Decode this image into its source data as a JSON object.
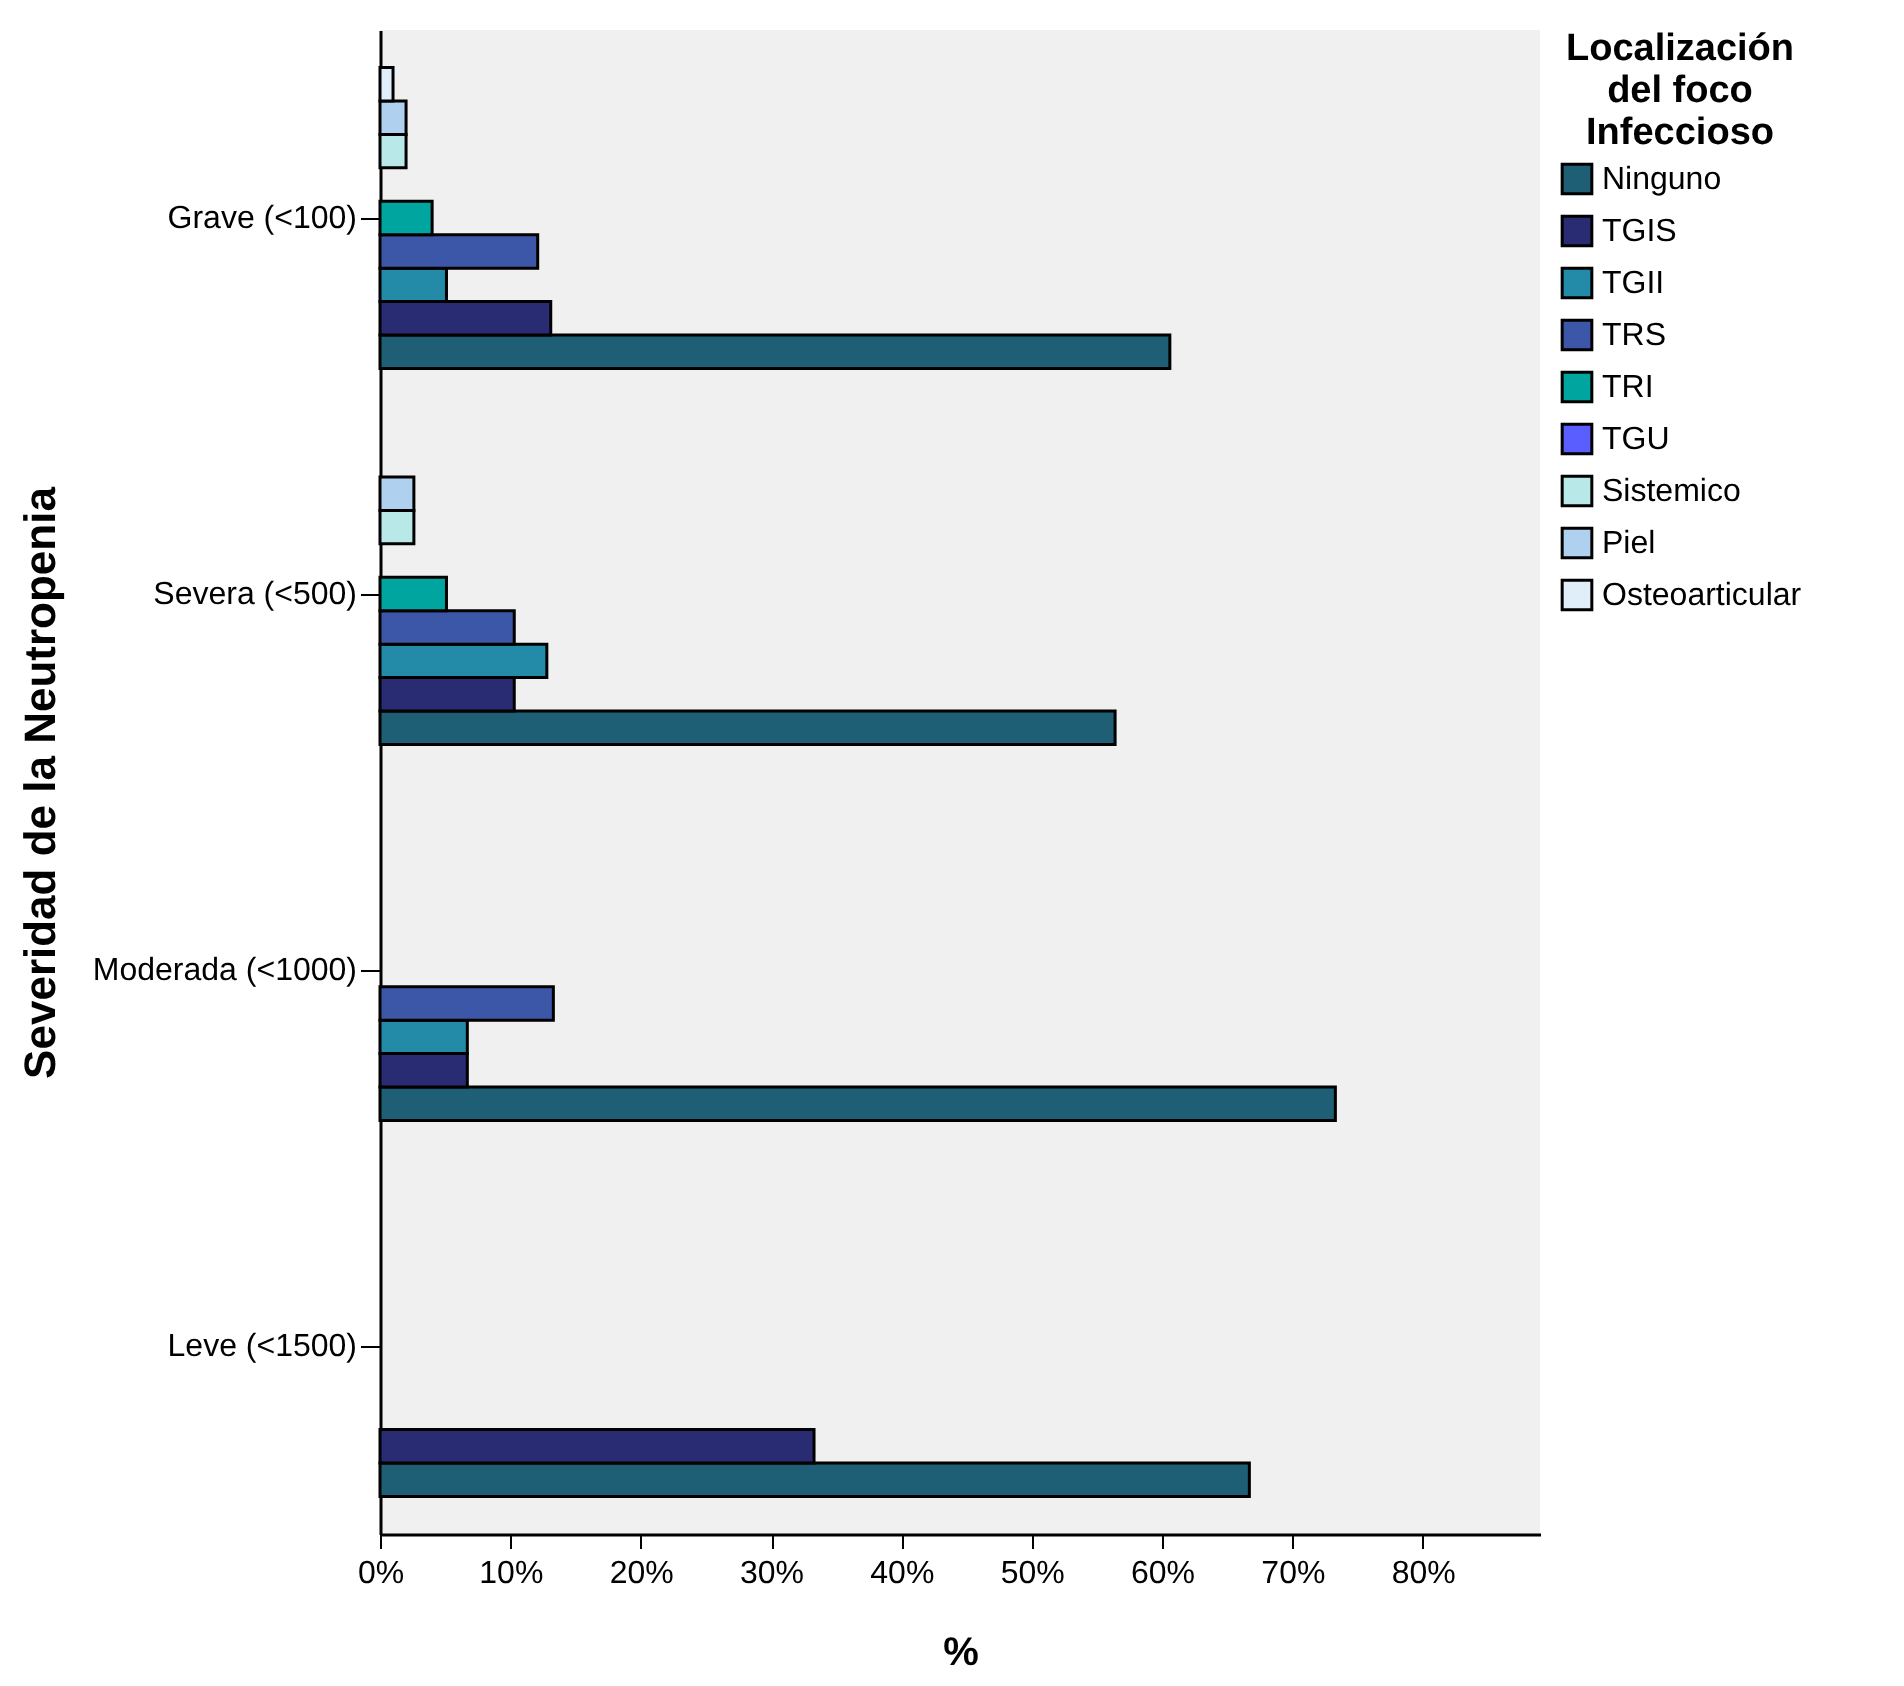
{
  "chart_data": {
    "type": "bar",
    "orientation": "horizontal",
    "xlabel": "%",
    "ylabel": "Severidad de la Neutropenia",
    "legend_title": "Localización del foco Infeccioso",
    "legend": "right",
    "categories": [
      "Grave (<100)",
      "Severa (<500)",
      "Moderada (<1000)",
      "Leve (<1500)"
    ],
    "xlim": [
      0,
      89
    ],
    "xticks": [
      {
        "value": 0,
        "label": "0%"
      },
      {
        "value": 10,
        "label": "10%"
      },
      {
        "value": 20,
        "label": "20%"
      },
      {
        "value": 30,
        "label": "30%"
      },
      {
        "value": 40,
        "label": "40%"
      },
      {
        "value": 50,
        "label": "50%"
      },
      {
        "value": 60,
        "label": "60%"
      },
      {
        "value": 70,
        "label": "70%"
      },
      {
        "value": 80,
        "label": "80%"
      }
    ],
    "grid": false,
    "series": [
      {
        "name": "Ninguno",
        "color": "#1f5f75",
        "values": [
          60.6,
          56.4,
          73.3,
          66.7
        ]
      },
      {
        "name": "TGIS",
        "color": "#292b73",
        "values": [
          13.1,
          10.3,
          6.7,
          33.3
        ]
      },
      {
        "name": "TGII",
        "color": "#238aa8",
        "values": [
          5.1,
          12.8,
          6.7,
          null
        ]
      },
      {
        "name": "TRS",
        "color": "#3d57a8",
        "values": [
          12.1,
          10.3,
          13.3,
          null
        ]
      },
      {
        "name": "TRI",
        "color": "#00a5a0",
        "values": [
          4.0,
          5.1,
          null,
          null
        ]
      },
      {
        "name": "TGU",
        "color": "#5a5eff",
        "values": [
          null,
          null,
          null,
          null
        ]
      },
      {
        "name": "Sistemico",
        "color": "#b8e8e8",
        "values": [
          2.0,
          2.6,
          null,
          null
        ]
      },
      {
        "name": "Piel",
        "color": "#b0d0f0",
        "values": [
          2.0,
          2.6,
          null,
          null
        ]
      },
      {
        "name": "Osteoarticular",
        "color": "#e0eefa",
        "values": [
          1.0,
          null,
          null,
          null
        ]
      }
    ]
  }
}
